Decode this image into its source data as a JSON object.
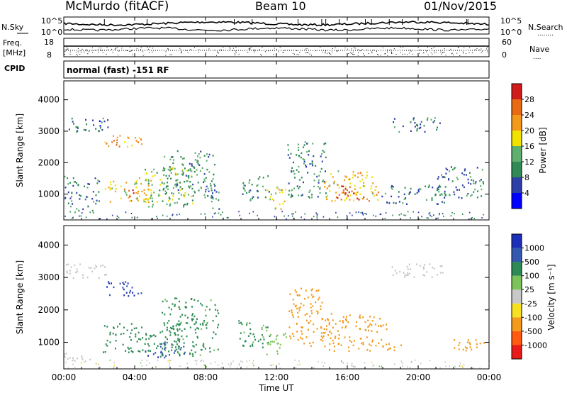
{
  "header": {
    "station": "McMurdo (fitACF)",
    "beam": "Beam 10",
    "date": "01/Nov/2015"
  },
  "left_labels": {
    "nsky": "N.Sky",
    "freq_line1": "Freq.",
    "freq_line2": "[MHz]",
    "cpid": "CPID"
  },
  "right_labels": {
    "nsearch": "N.Search",
    "nsearch_dots": "........",
    "nave": "Nave",
    "nave_dots": "...."
  },
  "noise_ticks": {
    "top": "10^5",
    "bottom": "10^0"
  },
  "freq_ticks": {
    "top": "18",
    "bottom": "8"
  },
  "nave_ticks": {
    "top": "60",
    "bottom": "0"
  },
  "cpid_text": "normal (fast) -151 RF",
  "colors": {
    "power": [
      "#0000ff",
      "#2e3fa8",
      "#2f8a55",
      "#5fb06f",
      "#f2e200",
      "#f39a1c",
      "#e86a12",
      "#d11a1a"
    ],
    "velocity": [
      "#1b2fb8",
      "#3358b0",
      "#2e8a55",
      "#7cc45a",
      "#c8c8c8",
      "#f7e020",
      "#f39a1c",
      "#ff5a10",
      "#e81a1a"
    ]
  },
  "chart_data": [
    {
      "type": "heatmap",
      "panel": "power",
      "ylabel": "Slant Range [km]",
      "ylim": [
        180,
        4600
      ],
      "y_ticks": [
        "1000",
        "2000",
        "3000",
        "4000"
      ],
      "colorbar_label": "Power [dB]",
      "colorbar_ticks": [
        "4",
        "8",
        "12",
        "16",
        "20",
        "24",
        "28"
      ],
      "colorbar_range": [
        0,
        32
      ],
      "echo_regions": [
        {
          "t0": 0.3,
          "t1": 1.6,
          "r0": 450,
          "r1": 700,
          "value": 10
        },
        {
          "t0": 0.0,
          "t1": 2.0,
          "r0": 700,
          "r1": 1600,
          "value": 9
        },
        {
          "t0": 0.0,
          "t1": 2.5,
          "r0": 3000,
          "r1": 3450,
          "value": 8
        },
        {
          "t0": 2.3,
          "t1": 4.4,
          "r0": 2450,
          "r1": 2900,
          "value": 22
        },
        {
          "t0": 2.3,
          "t1": 5.0,
          "r0": 750,
          "r1": 1550,
          "value": 18
        },
        {
          "t0": 3.3,
          "t1": 4.3,
          "r0": 800,
          "r1": 1200,
          "value": 26
        },
        {
          "t0": 4.5,
          "t1": 7.5,
          "r0": 600,
          "r1": 1900,
          "value": 14
        },
        {
          "t0": 5.5,
          "t1": 8.5,
          "r0": 1000,
          "r1": 2400,
          "value": 11
        },
        {
          "t0": 7.8,
          "t1": 8.8,
          "r0": 550,
          "r1": 1500,
          "value": 10
        },
        {
          "t0": 10.0,
          "t1": 11.6,
          "r0": 800,
          "r1": 1600,
          "value": 11
        },
        {
          "t0": 11.4,
          "t1": 12.6,
          "r0": 550,
          "r1": 1300,
          "value": 17
        },
        {
          "t0": 12.6,
          "t1": 14.8,
          "r0": 900,
          "r1": 2700,
          "value": 10
        },
        {
          "t0": 14.6,
          "t1": 17.8,
          "r0": 800,
          "r1": 1800,
          "value": 20
        },
        {
          "t0": 15.3,
          "t1": 17.0,
          "r0": 850,
          "r1": 1350,
          "value": 28
        },
        {
          "t0": 17.8,
          "t1": 21.5,
          "r0": 700,
          "r1": 1300,
          "value": 9
        },
        {
          "t0": 18.5,
          "t1": 21.2,
          "r0": 3000,
          "r1": 3450,
          "value": 8
        },
        {
          "t0": 21.0,
          "t1": 23.8,
          "r0": 900,
          "r1": 1900,
          "value": 9
        }
      ]
    },
    {
      "type": "heatmap",
      "panel": "velocity",
      "xlabel": "Time UT",
      "ylabel": "Slant Range [km]",
      "ylim": [
        180,
        4600
      ],
      "xlim": [
        0,
        24
      ],
      "x_ticks": [
        "00:00",
        "04:00",
        "08:00",
        "12:00",
        "16:00",
        "20:00",
        "00:00"
      ],
      "y_ticks": [
        "1000",
        "2000",
        "3000",
        "4000"
      ],
      "colorbar_label": "Velocity [m s⁻¹]",
      "colorbar_ticks": [
        "1000",
        "500",
        "100",
        "25",
        "-25",
        "-100",
        "-500",
        "-1000"
      ],
      "echo_regions": [
        {
          "t0": 0.0,
          "t1": 2.0,
          "r0": 450,
          "r1": 700,
          "value": 15
        },
        {
          "t0": 0.0,
          "t1": 2.5,
          "r0": 3000,
          "r1": 3450,
          "value": 10
        },
        {
          "t0": 2.3,
          "t1": 4.4,
          "r0": 2450,
          "r1": 2900,
          "value": 900
        },
        {
          "t0": 2.2,
          "t1": 6.5,
          "r0": 700,
          "r1": 1600,
          "value": 200
        },
        {
          "t0": 4.5,
          "t1": 6.8,
          "r0": 550,
          "r1": 1000,
          "value": 800
        },
        {
          "t0": 5.5,
          "t1": 8.7,
          "r0": 600,
          "r1": 2400,
          "value": 150
        },
        {
          "t0": 9.8,
          "t1": 11.6,
          "r0": 800,
          "r1": 1700,
          "value": 120
        },
        {
          "t0": 11.4,
          "t1": 12.6,
          "r0": 550,
          "r1": 1300,
          "value": 60
        },
        {
          "t0": 12.6,
          "t1": 14.6,
          "r0": 900,
          "r1": 2700,
          "value": -300
        },
        {
          "t0": 14.6,
          "t1": 18.2,
          "r0": 750,
          "r1": 1900,
          "value": -300
        },
        {
          "t0": 18.0,
          "t1": 19.0,
          "r0": 700,
          "r1": 1000,
          "value": -300
        },
        {
          "t0": 18.5,
          "t1": 21.5,
          "r0": 3000,
          "r1": 3450,
          "value": 10
        },
        {
          "t0": 22.0,
          "t1": 23.8,
          "r0": 650,
          "r1": 1100,
          "value": -150
        }
      ]
    }
  ]
}
